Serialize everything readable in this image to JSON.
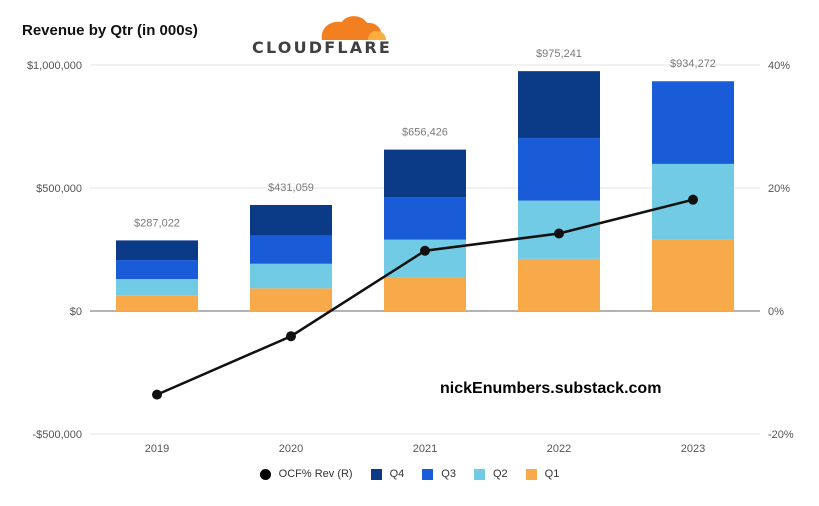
{
  "header": {
    "title": "Revenue by Qtr (in 000s)",
    "logo_text": "CLOUDFLARE",
    "logo_icon": "cloud-icon",
    "logo_color": "#f38020"
  },
  "watermark": "nickEnumbers.substack.com",
  "colors": {
    "Q1": "#f8a94a",
    "Q2": "#72cbe4",
    "Q3": "#1a5bd8",
    "Q4": "#0b3a87",
    "line": "#111111",
    "grid": "#e6e6e6",
    "zero": "#9a9a9a"
  },
  "chart_data": {
    "type": "bar",
    "stacked": true,
    "categories": [
      "2019",
      "2020",
      "2021",
      "2022",
      "2023"
    ],
    "series": [
      {
        "name": "Q1",
        "values": [
          62000,
          92000,
          138000,
          212000,
          290000
        ]
      },
      {
        "name": "Q2",
        "values": [
          68000,
          100000,
          152000,
          237000,
          308000
        ]
      },
      {
        "name": "Q3",
        "values": [
          77000,
          114000,
          172000,
          254000,
          336000
        ]
      },
      {
        "name": "Q4",
        "values": [
          80000,
          125000,
          194000,
          272000,
          0
        ]
      }
    ],
    "totals": [
      "$287,022",
      "$431,059",
      "$656,426",
      "$975,241",
      "$934,272"
    ],
    "line_series": {
      "name": "OCF% Rev (R)",
      "axis": "right",
      "values": [
        -0.136,
        -0.041,
        0.098,
        0.126,
        0.181
      ]
    },
    "y_left": {
      "ticks": [
        1000000,
        500000,
        0,
        -500000
      ],
      "tick_labels": [
        "$1,000,000",
        "$500,000",
        "$0",
        "-$500,000"
      ],
      "ylim": [
        -500000,
        1000000
      ]
    },
    "y_right": {
      "ticks": [
        0.4,
        0.2,
        0,
        -0.2
      ],
      "tick_labels": [
        "40%",
        "20%",
        "0%",
        "-20%"
      ],
      "ylim": [
        -0.2,
        0.4
      ]
    },
    "grid": true,
    "legend": {
      "position": "bottom",
      "entries": [
        "OCF% Rev (R)",
        "Q4",
        "Q3",
        "Q2",
        "Q1"
      ]
    }
  }
}
